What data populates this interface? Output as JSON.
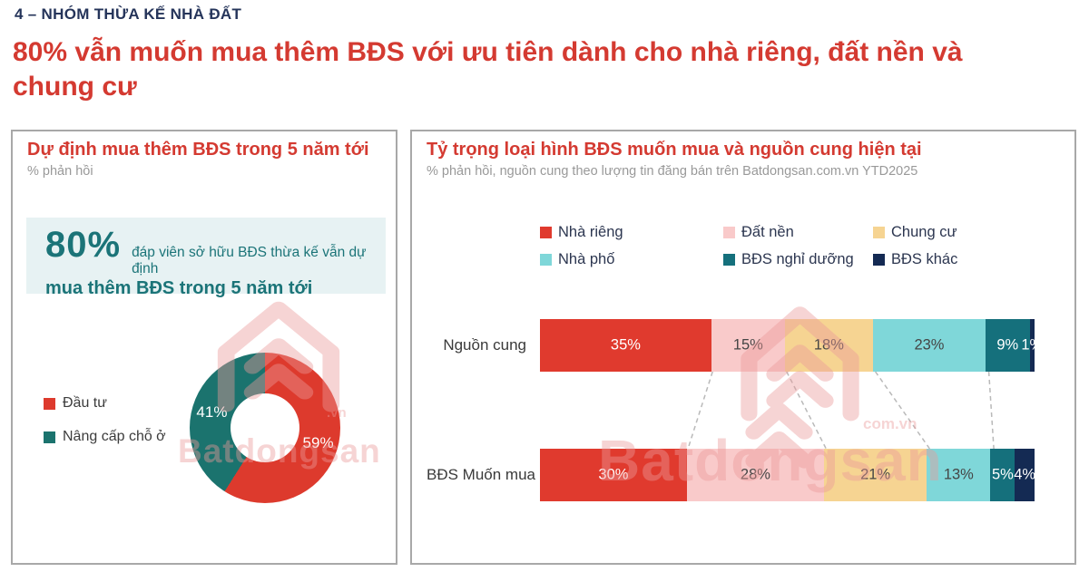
{
  "page": {
    "kicker": "4 – NHÓM THỪA KẾ NHÀ ĐẤT",
    "headline": "80% vẫn muốn mua thêm BĐS với ưu tiên dành cho nhà riêng, đất nền và chung cư"
  },
  "colors": {
    "accent_red": "#d43a31",
    "heading_navy": "#25345a",
    "teal": "#1b7478",
    "highlight_bg": "#e7f2f3",
    "subtitle_gray": "#999999",
    "panel_border": "#a8a8a8",
    "watermark_pink": "#ec9a9a",
    "connector_gray": "#b9b9b9"
  },
  "left_panel": {
    "title": "Dự định mua thêm BĐS trong 5 năm tới",
    "subtitle": "% phản hồi",
    "highlight": {
      "stat": "80%",
      "text": "đáp viên sở hữu BĐS thừa kế vẫn dự định",
      "text_bold": "mua thêm BĐS trong 5 năm tới"
    },
    "watermark": {
      "brand": "Batdongsan",
      "suffix": ".vn"
    }
  },
  "right_panel": {
    "title": "Tỷ trọng loại hình BĐS muốn mua và nguồn cung hiện tại",
    "subtitle": "% phản hồi, nguồn cung theo lượng tin đăng bán trên Batdongsan.com.vn YTD2025",
    "watermark": {
      "brand": "Batdongsan",
      "suffix": "com.vn"
    }
  },
  "chart_data": [
    {
      "type": "pie",
      "subtype": "donut",
      "title": "Dự định mua thêm BĐS trong 5 năm tới",
      "labels": [
        "Đầu tư",
        "Nâng cấp chỗ ở"
      ],
      "values": [
        59,
        41
      ],
      "unit": "%",
      "colors": [
        "#dd3a2d",
        "#1b736e"
      ],
      "data_label_color": "#ffffff",
      "legend_position": "left"
    },
    {
      "type": "bar",
      "subtype": "stacked-horizontal",
      "title": "Tỷ trọng loại hình BĐS muốn mua và nguồn cung hiện tại",
      "categories": [
        "Nguồn cung",
        "BĐS Muốn mua"
      ],
      "unit": "%",
      "series": [
        {
          "name": "Nhà riêng",
          "color": "#e03a2e",
          "text_color": "#ffffff",
          "values": [
            35,
            30
          ]
        },
        {
          "name": "Đất nền",
          "color": "#f9caca",
          "text_color": "#454545",
          "values": [
            15,
            28
          ]
        },
        {
          "name": "Chung cư",
          "color": "#f6d492",
          "text_color": "#454545",
          "values": [
            18,
            21
          ]
        },
        {
          "name": "Nhà phố",
          "color": "#7fd7d9",
          "text_color": "#454545",
          "values": [
            23,
            13
          ]
        },
        {
          "name": "BĐS nghỉ dưỡng",
          "color": "#15707c",
          "text_color": "#ffffff",
          "values": [
            9,
            5
          ]
        },
        {
          "name": "BĐS khác",
          "color": "#142a53",
          "text_color": "#ffffff",
          "values": [
            1,
            4
          ]
        }
      ],
      "connector_boundaries": [
        1,
        2,
        3,
        4
      ],
      "legend_rows": 2
    }
  ]
}
